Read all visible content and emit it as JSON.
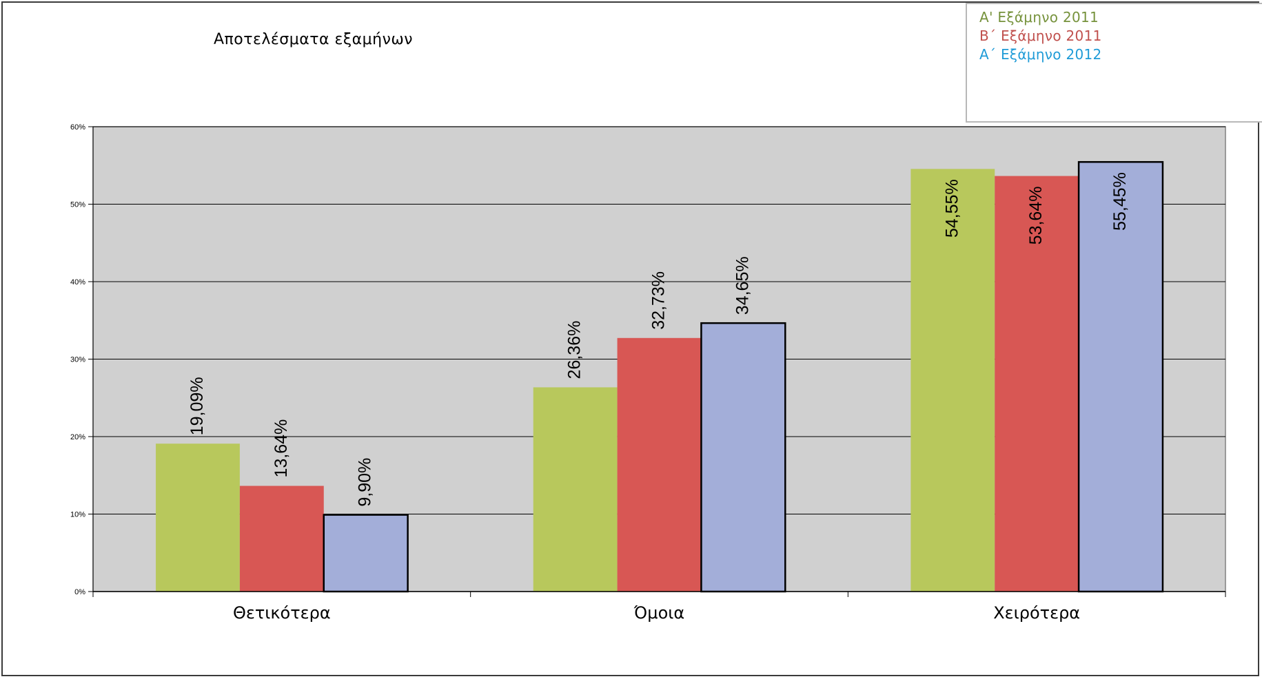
{
  "chart_data": {
    "type": "bar",
    "title": "Αποτελέσματα εξαμήνων",
    "xlabel": "",
    "ylabel": "",
    "categories": [
      "Θετικότερα",
      "Όμοια",
      "Χειρότερα"
    ],
    "series": [
      {
        "name": "Α'  Εξάμηνο 2011",
        "color": "#b8c85c",
        "values": [
          19.09,
          26.36,
          54.55
        ],
        "labels": [
          "19,09%",
          "26,36%",
          "54,55%"
        ],
        "outlined": false
      },
      {
        "name": "Β΄ Εξάμηνο 2011",
        "color": "#d85754",
        "values": [
          13.64,
          32.73,
          53.64
        ],
        "labels": [
          "13,64%",
          "32,73%",
          "53,64%"
        ],
        "outlined": false
      },
      {
        "name": "Α΄ Εξάμηνο 2012",
        "color": "#a3aed9",
        "values": [
          9.9,
          34.65,
          55.45
        ],
        "labels": [
          "9,90%",
          "34,65%",
          "55,45%"
        ],
        "outlined": true
      }
    ],
    "legend_colors": [
      "#76923c",
      "#c0504d",
      "#1f9bd7"
    ],
    "ylim": [
      0,
      60
    ],
    "yticks": [
      0,
      10,
      20,
      30,
      40,
      50,
      60
    ],
    "ytick_labels": [
      "0%",
      "10%",
      "20%",
      "30%",
      "40%",
      "50%",
      "60%"
    ],
    "grid": true,
    "legend_position": "top-right",
    "plot_background": "#d0d0d0"
  }
}
